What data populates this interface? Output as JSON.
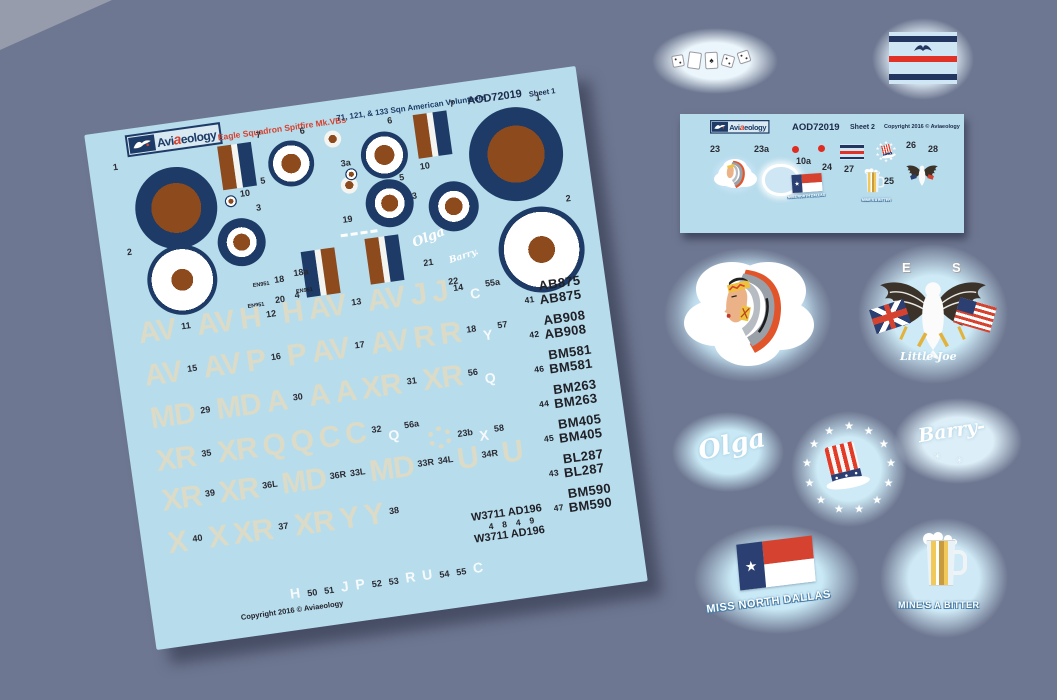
{
  "icons": {
    "star": "★",
    "spade": "♠",
    "sparkle": "✳"
  },
  "sheet1": {
    "brand": {
      "pre": "Avi",
      "accent": "a",
      "post": "eology"
    },
    "title_red": "Eagle Squadron Spitfire Mk.VBs",
    "title_navy": "71, 121, & 133 Sqn American Volunteers",
    "product_code": "AOD72019",
    "sheet_label": "Sheet 1",
    "copyright": "Copyright 2016 © Aviaeology",
    "tiny_serial": "EN951",
    "labels": {
      "n1": "1",
      "n2": "2",
      "n3": "3",
      "n3a": "3a",
      "n4": "4",
      "n5": "5",
      "n6": "6",
      "n7": "7",
      "n10": "10",
      "n18": "18",
      "n18a": "18a",
      "n19": "19",
      "n20": "20",
      "n21": "21",
      "n22": "22"
    },
    "scripts": {
      "olga": "Olga",
      "barry": "Barry."
    },
    "code_rows": [
      [
        [
          "c",
          "AV"
        ],
        [
          "n",
          "11"
        ],
        [
          "c",
          "AV"
        ],
        [
          "c",
          "H"
        ],
        [
          "n",
          "12"
        ],
        [
          "c",
          "H"
        ],
        [
          "c",
          "AV"
        ],
        [
          "n",
          "13"
        ],
        [
          "c",
          "AV"
        ],
        [
          "c",
          "J"
        ],
        [
          "c",
          "J"
        ],
        [
          "n",
          "14"
        ],
        [
          "w",
          "C"
        ],
        [
          "n",
          "55a"
        ]
      ],
      [
        [
          "c",
          "AV"
        ],
        [
          "n",
          "15"
        ],
        [
          "c",
          "AV"
        ],
        [
          "c",
          "P"
        ],
        [
          "n",
          "16"
        ],
        [
          "c",
          "P"
        ],
        [
          "c",
          "AV"
        ],
        [
          "n",
          "17"
        ],
        [
          "c",
          "AV"
        ],
        [
          "c",
          "R"
        ],
        [
          "c",
          "R"
        ],
        [
          "n",
          "18"
        ],
        [
          "w",
          "Y"
        ],
        [
          "n",
          "57"
        ]
      ],
      [
        [
          "c",
          "MD"
        ],
        [
          "n",
          "29"
        ],
        [
          "c",
          "MD"
        ],
        [
          "c",
          "A"
        ],
        [
          "n",
          "30"
        ],
        [
          "c",
          "A"
        ],
        [
          "c",
          "A"
        ],
        [
          "c",
          "XR"
        ],
        [
          "n",
          "31"
        ],
        [
          "c",
          "XR"
        ],
        [
          "n",
          "56"
        ],
        [
          "w",
          "Q"
        ]
      ],
      [
        [
          "c",
          "XR"
        ],
        [
          "n",
          "35"
        ],
        [
          "c",
          "XR"
        ],
        [
          "c",
          "Q"
        ],
        [
          "c",
          "Q"
        ],
        [
          "c",
          "C"
        ],
        [
          "c",
          "C"
        ],
        [
          "n",
          "32"
        ],
        [
          "w",
          "Q"
        ],
        [
          "n",
          "56a"
        ]
      ],
      [
        [
          "g",
          ""
        ],
        [
          "n",
          "23b"
        ],
        [
          "w",
          "X"
        ],
        [
          "n",
          "58"
        ]
      ],
      [
        [
          "c",
          "XR"
        ],
        [
          "n",
          "39"
        ],
        [
          "c",
          "XR"
        ],
        [
          "n",
          "36L"
        ],
        [
          "c",
          "MD"
        ],
        [
          "n",
          "36R"
        ],
        [
          "n",
          "33L"
        ],
        [
          "c",
          "MD"
        ],
        [
          "n",
          "33R"
        ],
        [
          "n",
          "34L"
        ],
        [
          "c",
          "U"
        ],
        [
          "n",
          "34R"
        ],
        [
          "c",
          "U"
        ]
      ],
      [
        [
          "c",
          "X"
        ],
        [
          "n",
          "40"
        ],
        [
          "c",
          "X"
        ],
        [
          "c",
          "XR"
        ],
        [
          "n",
          "37"
        ],
        [
          "c",
          "XR"
        ],
        [
          "c",
          "Y"
        ],
        [
          "c",
          "Y"
        ],
        [
          "n",
          "38"
        ]
      ],
      [
        [
          "w",
          "H"
        ],
        [
          "n",
          "50"
        ],
        [
          "n",
          "51"
        ],
        [
          "w",
          "J"
        ],
        [
          "w",
          "P"
        ],
        [
          "n",
          "52"
        ],
        [
          "n",
          "53"
        ],
        [
          "w",
          "R"
        ],
        [
          "w",
          "U"
        ],
        [
          "n",
          "54"
        ],
        [
          "n",
          "55"
        ],
        [
          "w",
          "C"
        ]
      ]
    ],
    "w37": {
      "line": "W3711  AD196",
      "num_a": "48",
      "num_b": "49"
    },
    "serial_pairs": [
      {
        "num": "41",
        "serial": "AB875"
      },
      {
        "num": "42",
        "serial": "AB908"
      },
      {
        "num": "46",
        "serial": "BM581"
      },
      {
        "num": "44",
        "serial": "BM263"
      },
      {
        "num": "45",
        "serial": "BM405"
      },
      {
        "num": "43",
        "serial": "BL287"
      },
      {
        "num": "47",
        "serial": "BM590"
      }
    ]
  },
  "sheet2": {
    "brand": {
      "pre": "Avi",
      "accent": "a",
      "post": "eology"
    },
    "product_code": "AOD72019",
    "sheet_label": "Sheet 2",
    "copyright": "Copyright 2016 © Aviaeology",
    "labels": {
      "n23": "23",
      "n23a": "23a",
      "n10a": "10a",
      "n24": "24",
      "n25": "25",
      "n26": "26",
      "n27": "27",
      "n28": "28"
    },
    "mini_dallas": "MISS NORTH DALLAS",
    "mini_bitter": "MINE'S A BITTER"
  },
  "decals": {
    "eagle": {
      "letter_e": "E",
      "letter_s": "S",
      "script": "Little Joe"
    },
    "olga": "Olga",
    "barry": {
      "name": "Barry-"
    },
    "dallas": "MISS NORTH DALLAS",
    "bitter": "MINE'S A BITTER"
  }
}
